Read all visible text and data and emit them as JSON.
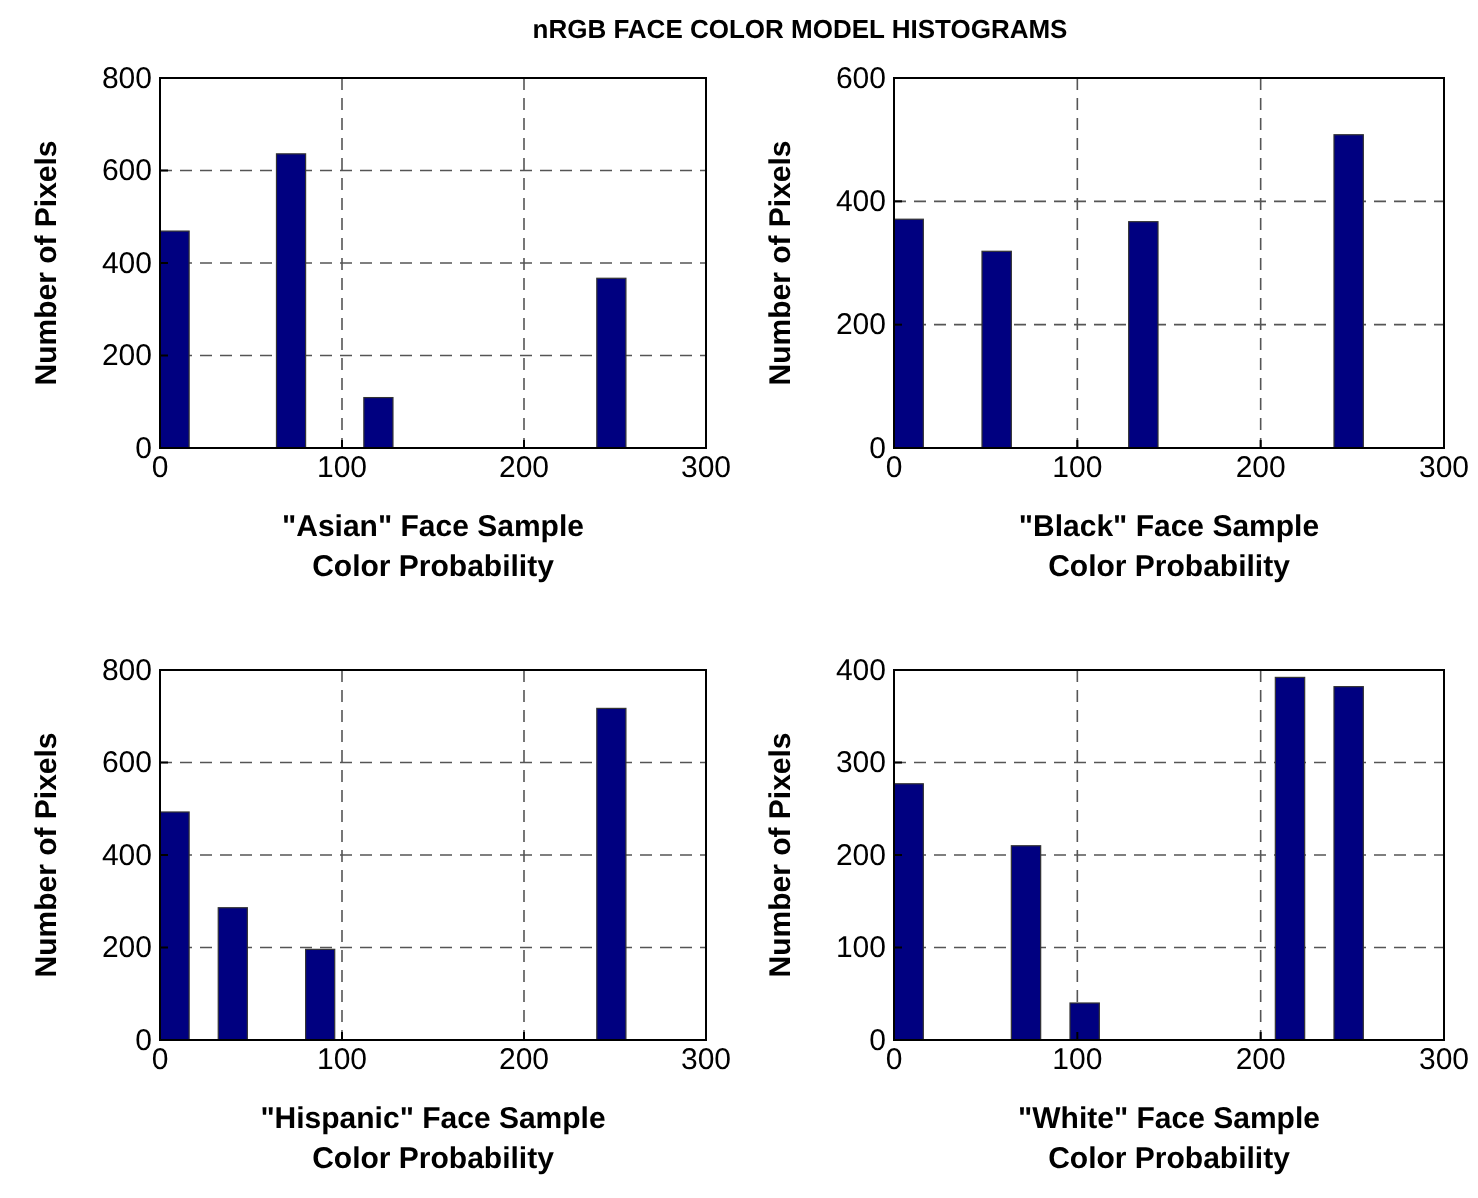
{
  "chart_data": [
    {
      "type": "histogram",
      "title": "nRGB FACE COLOR MODEL HISTOGRAMS",
      "xlabel": "\"Asian\" Face Sample\nColor Probability",
      "ylabel": "Number of Pixels",
      "bins": [
        0,
        16,
        32,
        48,
        64,
        80,
        96,
        112,
        128,
        144,
        160,
        176,
        192,
        208,
        224,
        240,
        256
      ],
      "values": [
        469,
        0,
        0,
        0,
        636,
        0,
        0,
        109,
        0,
        0,
        0,
        0,
        0,
        0,
        0,
        367
      ],
      "color": "#000080",
      "xlim": [
        0,
        300
      ],
      "xticks": [
        0,
        100,
        200,
        300
      ],
      "ylim": [
        0,
        800
      ],
      "yticks": [
        0,
        200,
        400,
        600,
        800
      ],
      "grid": true
    },
    {
      "type": "histogram",
      "xlabel": "\"Black\" Face Sample\nColor Probability",
      "ylabel": "Number of Pixels",
      "bins": [
        0,
        16,
        32,
        48,
        64,
        80,
        96,
        112,
        128,
        144,
        160,
        176,
        192,
        208,
        224,
        240,
        256
      ],
      "values": [
        371,
        0,
        0,
        319,
        0,
        0,
        0,
        0,
        367,
        0,
        0,
        0,
        0,
        0,
        0,
        508
      ],
      "color": "#000080",
      "xlim": [
        0,
        300
      ],
      "xticks": [
        0,
        100,
        200,
        300
      ],
      "ylim": [
        0,
        600
      ],
      "yticks": [
        0,
        200,
        400,
        600
      ],
      "grid": true
    },
    {
      "type": "histogram",
      "xlabel": "\"Hispanic\" Face Sample\nColor Probability",
      "ylabel": "Number of Pixels",
      "bins": [
        0,
        16,
        32,
        48,
        64,
        80,
        96,
        112,
        128,
        144,
        160,
        176,
        192,
        208,
        224,
        240,
        256
      ],
      "values": [
        493,
        0,
        286,
        0,
        0,
        196,
        0,
        0,
        0,
        0,
        0,
        0,
        0,
        0,
        0,
        717
      ],
      "color": "#000080",
      "xlim": [
        0,
        300
      ],
      "xticks": [
        0,
        100,
        200,
        300
      ],
      "ylim": [
        0,
        800
      ],
      "yticks": [
        0,
        200,
        400,
        600,
        800
      ],
      "grid": true
    },
    {
      "type": "histogram",
      "xlabel": "\"White\" Face Sample\nColor Probability",
      "ylabel": "Number of Pixels",
      "bins": [
        0,
        16,
        32,
        48,
        64,
        80,
        96,
        112,
        128,
        144,
        160,
        176,
        192,
        208,
        224,
        240,
        256
      ],
      "values": [
        277,
        0,
        0,
        0,
        210,
        0,
        40,
        0,
        0,
        0,
        0,
        0,
        0,
        392,
        0,
        382
      ],
      "color": "#000080",
      "xlim": [
        0,
        300
      ],
      "xticks": [
        0,
        100,
        200,
        300
      ],
      "ylim": [
        0,
        400
      ],
      "yticks": [
        0,
        100,
        200,
        300,
        400
      ],
      "grid": true
    }
  ]
}
